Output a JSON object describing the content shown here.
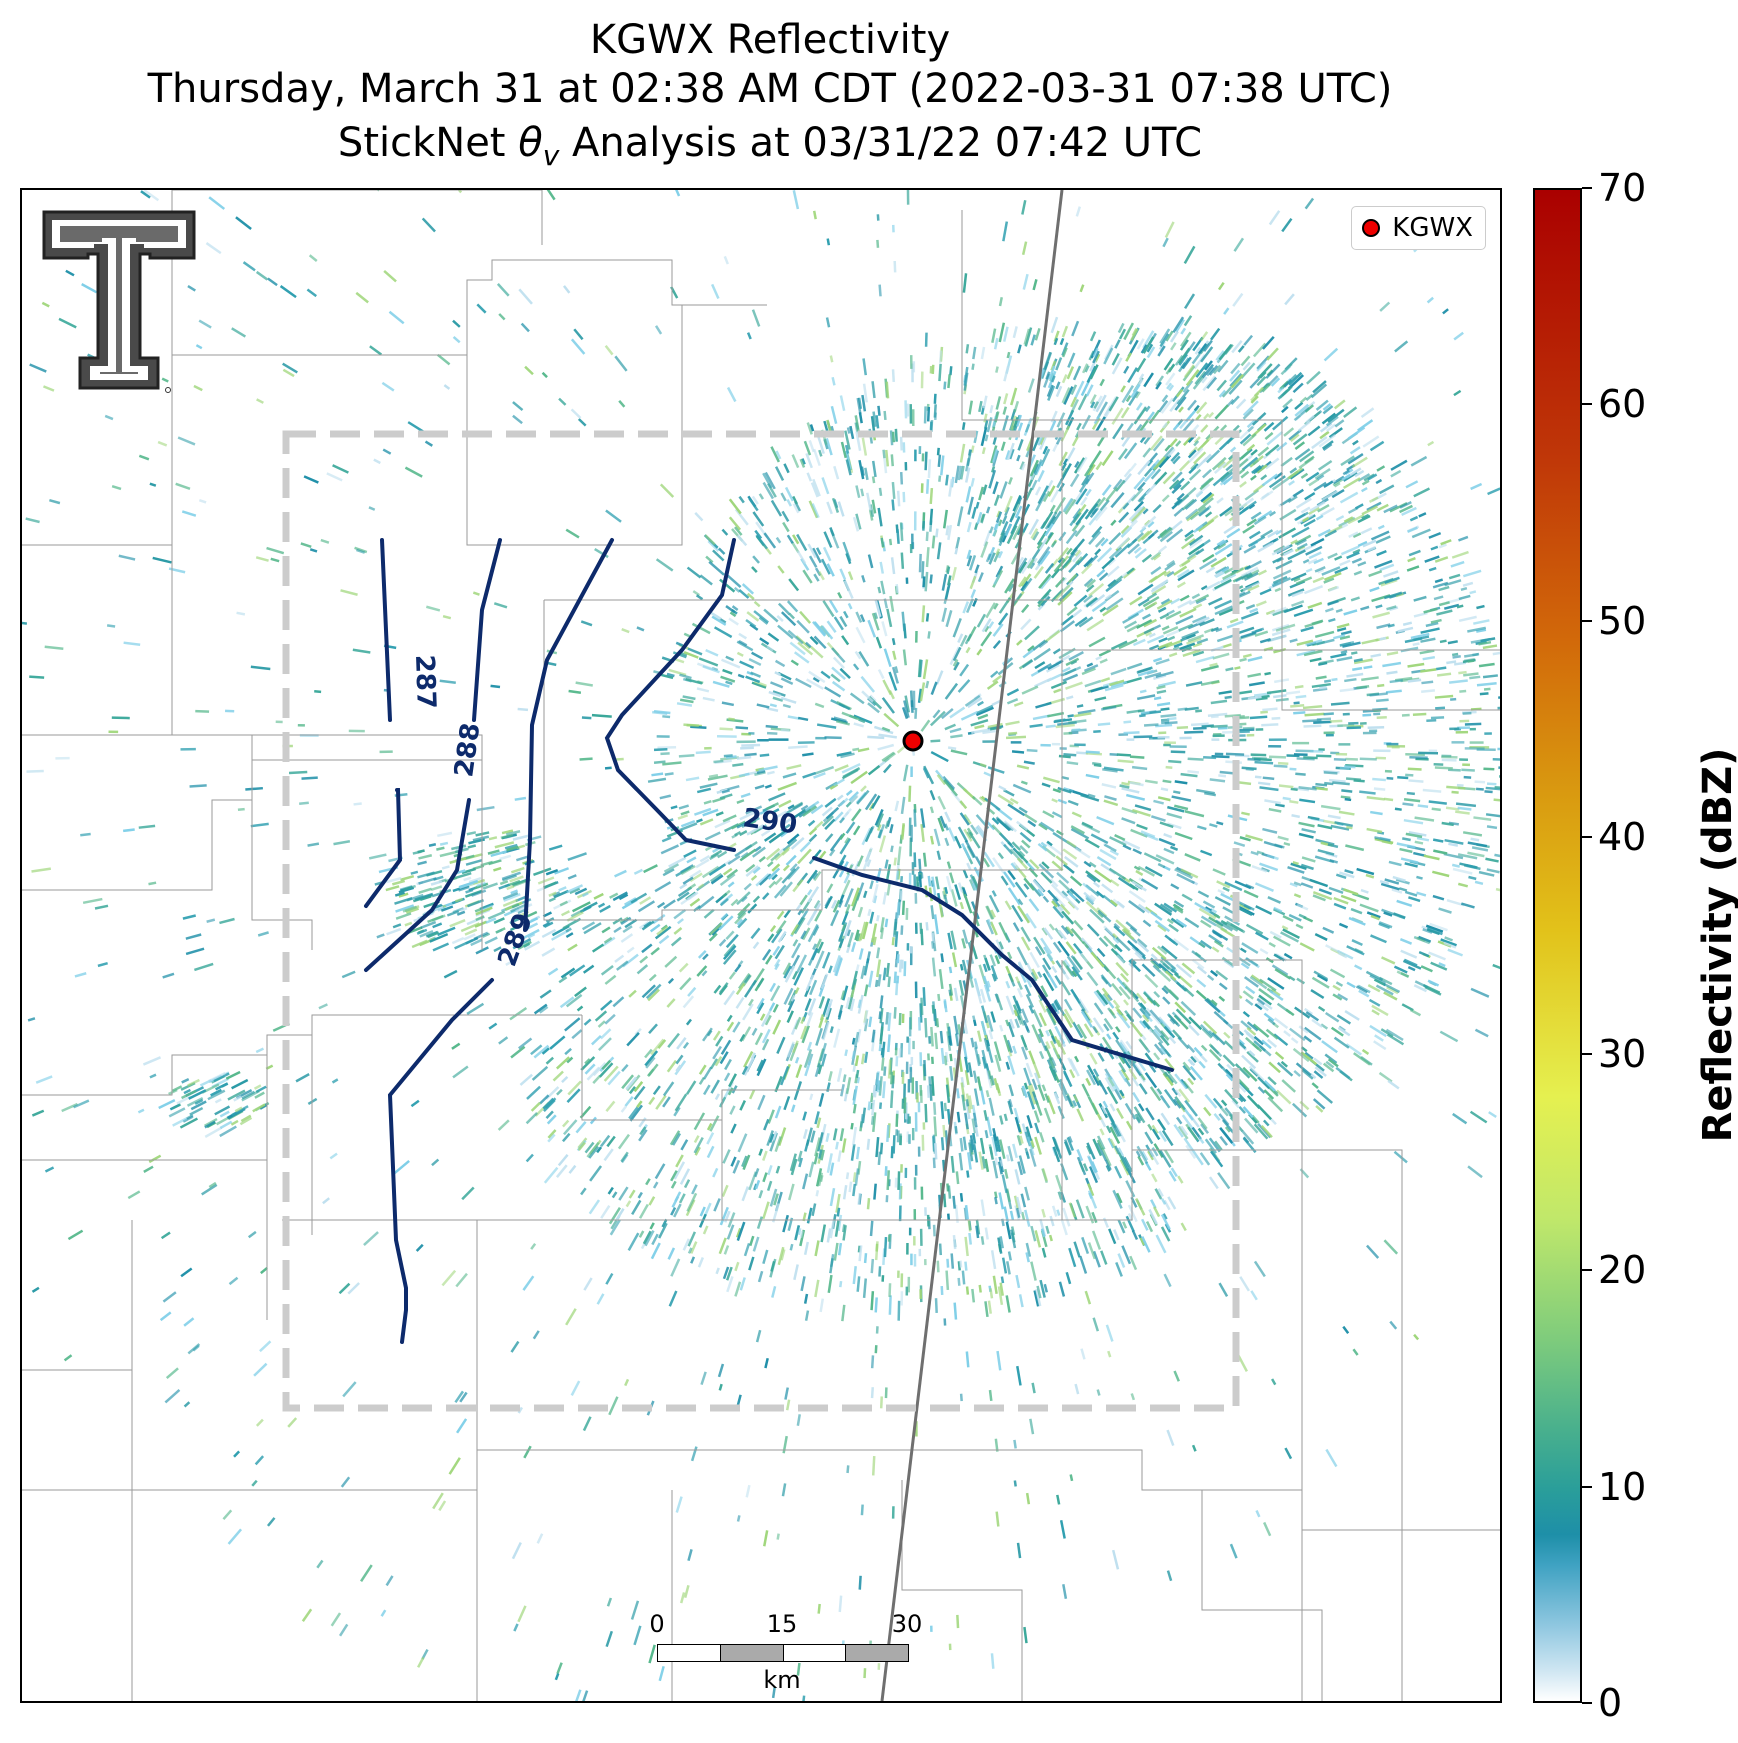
{
  "title": {
    "line1": "KGWX Reflectivity",
    "line2": "Thursday, March 31 at 02:38 AM CDT (2022-03-31 07:38 UTC)",
    "line3_prefix": "StickNet",
    "line3_symbol": "θ",
    "line3_subscript": "v",
    "line3_suffix": "Analysis at 03/31/22 07:42 UTC"
  },
  "legend": {
    "label": "KGWX",
    "marker_color": "#ee0000"
  },
  "contours": {
    "labels": [
      "287",
      "288",
      "289",
      "290"
    ],
    "line_color": "#0d2a6b"
  },
  "scalebar": {
    "ticks": [
      "0",
      "15",
      "30"
    ],
    "unit": "km"
  },
  "colorbar": {
    "label": "Reflectivity (dBZ)",
    "ticks": [
      "0",
      "10",
      "20",
      "30",
      "40",
      "50",
      "60",
      "70"
    ],
    "min": 0,
    "max": 70
  },
  "analysis_box_color": "#cccccc"
}
